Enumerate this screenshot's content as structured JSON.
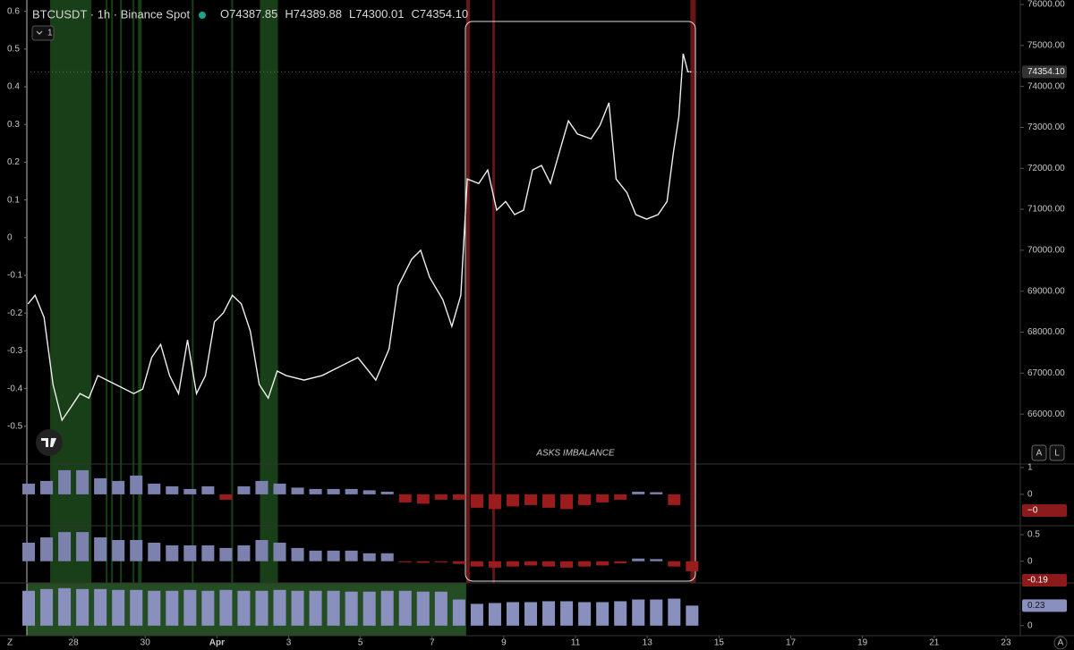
{
  "header": {
    "symbol": "BTCUSDT · 1h · Binance Spot",
    "ohlc": [
      {
        "label": "O",
        "value": 74387.85
      },
      {
        "label": "H",
        "value": 74389.88
      },
      {
        "label": "L",
        "value": 74300.01
      },
      {
        "label": "C",
        "value": 74354.1,
        "text": "74354.10"
      }
    ],
    "collapse": "1",
    "auto": "A",
    "log": "L",
    "corner_left": "Z",
    "corner_right": "A"
  },
  "chart_data": [
    {
      "type": "line",
      "annotation": "ASKS IMBALANCE",
      "xlim": [
        26.7,
        54.4
      ],
      "xticks": [
        {
          "value": 28,
          "label": "28"
        },
        {
          "value": 30,
          "label": "30"
        },
        {
          "value": 32,
          "label": "Apr"
        },
        {
          "value": 34,
          "label": "3"
        },
        {
          "value": 36,
          "label": "5"
        },
        {
          "value": 38,
          "label": "7"
        },
        {
          "value": 40,
          "label": "9"
        },
        {
          "value": 42,
          "label": "11"
        },
        {
          "value": 44,
          "label": "13"
        },
        {
          "value": 46,
          "label": "15"
        },
        {
          "value": 48,
          "label": "17"
        },
        {
          "value": 50,
          "label": "19"
        },
        {
          "value": 52,
          "label": "21"
        },
        {
          "value": 54,
          "label": "23"
        }
      ],
      "ylim": [
        -0.6,
        0.63
      ],
      "yticks": [
        0.6,
        0.5,
        0.4,
        0.3,
        0.2,
        0.1,
        0,
        -0.1,
        -0.2,
        -0.3,
        -0.4,
        -0.5
      ],
      "y2lim": [
        64780,
        76110
      ],
      "y2ticks": [
        {
          "value": 76000,
          "label": "76000.00"
        },
        {
          "value": 75000,
          "label": "75000.00"
        },
        {
          "value": 74000,
          "label": "74000.00"
        },
        {
          "value": 73000,
          "label": "73000.00"
        },
        {
          "value": 72000,
          "label": "72000.00"
        },
        {
          "value": 71000,
          "label": "71000.00"
        },
        {
          "value": 70000,
          "label": "70000.00"
        },
        {
          "value": 69000,
          "label": "69000.00"
        },
        {
          "value": 68000,
          "label": "68000.00"
        },
        {
          "value": 67000,
          "label": "67000.00"
        },
        {
          "value": 66000,
          "label": "66000.00"
        }
      ],
      "last_value": 74354.1,
      "last_value_label": "74354.10",
      "highlights": [
        {
          "start": 27.35,
          "end": 28.5,
          "color": "#1d4a1d"
        },
        {
          "start": 28.9,
          "end": 28.95,
          "color": "#1d4a1d"
        },
        {
          "start": 29.05,
          "end": 29.1,
          "color": "#1d4a1d"
        },
        {
          "start": 29.3,
          "end": 29.35,
          "color": "#1d4a1d"
        },
        {
          "start": 29.65,
          "end": 29.7,
          "color": "#1d4a1d"
        },
        {
          "start": 29.8,
          "end": 29.9,
          "color": "#1d4a1d"
        },
        {
          "start": 31.3,
          "end": 31.35,
          "color": "#1d4a1d"
        },
        {
          "start": 32.4,
          "end": 32.45,
          "color": "#1d4a1d"
        },
        {
          "start": 33.2,
          "end": 33.7,
          "color": "#1d4a1d"
        },
        {
          "start": 38.95,
          "end": 39.05,
          "color": "#7a1a1a"
        },
        {
          "start": 39.68,
          "end": 39.75,
          "color": "#7a1a1a"
        },
        {
          "start": 45.2,
          "end": 45.35,
          "color": "#7a1a1a"
        }
      ],
      "x": [
        26.73,
        26.93,
        27.18,
        27.43,
        27.68,
        27.93,
        28.18,
        28.43,
        28.68,
        28.93,
        29.18,
        29.43,
        29.68,
        29.93,
        30.18,
        30.43,
        30.68,
        30.93,
        31.18,
        31.43,
        31.68,
        31.93,
        32.18,
        32.43,
        32.68,
        32.93,
        33.18,
        33.43,
        33.68,
        33.93,
        34.43,
        34.93,
        35.43,
        35.93,
        36.43,
        36.8,
        37.05,
        37.43,
        37.68,
        37.93,
        38.3,
        38.55,
        38.8,
        38.98,
        39.3,
        39.55,
        39.8,
        40.05,
        40.3,
        40.55,
        40.8,
        41.05,
        41.3,
        41.55,
        41.8,
        42.05,
        42.43,
        42.68,
        42.93,
        43.13,
        43.43,
        43.68,
        43.98,
        44.3,
        44.55,
        44.73,
        44.88,
        45.0,
        45.13,
        45.23
      ],
      "series": [
        {
          "color": "#eeeeee",
          "axis": "y2",
          "values": [
            68690,
            68900,
            68360,
            66720,
            65850,
            66170,
            66500,
            66390,
            66940,
            66830,
            66720,
            66610,
            66500,
            66610,
            67380,
            67700,
            66940,
            66500,
            67810,
            66500,
            66940,
            68250,
            68470,
            68900,
            68690,
            68030,
            66720,
            66390,
            67050,
            66940,
            66830,
            66940,
            67160,
            67380,
            66830,
            67590,
            69120,
            69780,
            70000,
            69340,
            68790,
            68140,
            68900,
            71740,
            71630,
            71960,
            70980,
            71190,
            70870,
            70980,
            71960,
            72070,
            71630,
            72400,
            73160,
            72840,
            72720,
            73050,
            73600,
            71740,
            71410,
            70870,
            70760,
            70870,
            71190,
            72400,
            73270,
            74800,
            74360,
            74354.1
          ]
        }
      ]
    },
    {
      "type": "bar",
      "ylim": [
        -1.17,
        1.13
      ],
      "yticks": [
        1,
        0
      ],
      "color": "#7c82ad",
      "negative_color": "#9a1c1c",
      "last_value": -0.004,
      "last_value_label": "−0",
      "x": [
        26.75,
        27.25,
        27.75,
        28.25,
        28.75,
        29.25,
        29.75,
        30.25,
        30.75,
        31.25,
        31.75,
        32.25,
        32.75,
        33.25,
        33.75,
        34.25,
        34.75,
        35.25,
        35.75,
        36.25,
        36.75,
        37.25,
        37.75,
        38.25,
        38.75,
        39.25,
        39.75,
        40.25,
        40.75,
        41.25,
        41.75,
        42.25,
        42.75,
        43.25,
        43.75,
        44.25,
        44.75,
        45.25
      ],
      "values": [
        0.4,
        0.5,
        0.9,
        0.9,
        0.6,
        0.5,
        0.7,
        0.4,
        0.3,
        0.2,
        0.3,
        -0.2,
        0.3,
        0.5,
        0.4,
        0.25,
        0.2,
        0.2,
        0.2,
        0.15,
        0.1,
        -0.3,
        -0.35,
        -0.2,
        -0.2,
        -0.5,
        -0.55,
        -0.45,
        -0.4,
        -0.5,
        -0.55,
        -0.4,
        -0.3,
        -0.2,
        0.1,
        0.08,
        -0.4,
        -0.004
      ]
    },
    {
      "type": "bar",
      "ylim": [
        -0.41,
        0.67
      ],
      "yticks": [
        0.5,
        0
      ],
      "color": "#7c82ad",
      "negative_color": "#9a1c1c",
      "last_value": -0.19,
      "x": [
        26.75,
        27.25,
        27.75,
        28.25,
        28.75,
        29.25,
        29.75,
        30.25,
        30.75,
        31.25,
        31.75,
        32.25,
        32.75,
        33.25,
        33.75,
        34.25,
        34.75,
        35.25,
        35.75,
        36.25,
        36.75,
        37.25,
        37.75,
        38.25,
        38.75,
        39.25,
        39.75,
        40.25,
        40.75,
        41.25,
        41.75,
        42.25,
        42.75,
        43.25,
        43.75,
        44.25,
        44.75,
        45.25
      ],
      "values": [
        0.35,
        0.45,
        0.55,
        0.55,
        0.45,
        0.4,
        0.4,
        0.35,
        0.3,
        0.3,
        0.3,
        0.25,
        0.3,
        0.4,
        0.35,
        0.25,
        0.2,
        0.2,
        0.2,
        0.15,
        0.15,
        -0.02,
        -0.03,
        -0.02,
        -0.05,
        -0.1,
        -0.12,
        -0.1,
        -0.08,
        -0.1,
        -0.12,
        -0.1,
        -0.08,
        -0.04,
        0.05,
        0.04,
        -0.1,
        -0.19
      ]
    },
    {
      "type": "bar",
      "ylim": [
        -0.115,
        0.49
      ],
      "yticks": [
        0
      ],
      "color": "#8a90bd",
      "negative_color": "#9a1c1c",
      "last_value": 0.23,
      "highlights": [
        {
          "start": 26.7,
          "end": 38.95,
          "color": "#2a5a2a"
        }
      ],
      "x": [
        26.75,
        27.25,
        27.75,
        28.25,
        28.75,
        29.25,
        29.75,
        30.25,
        30.75,
        31.25,
        31.75,
        32.25,
        32.75,
        33.25,
        33.75,
        34.25,
        34.75,
        35.25,
        35.75,
        36.25,
        36.75,
        37.25,
        37.75,
        38.25,
        38.75,
        39.25,
        39.75,
        40.25,
        40.75,
        41.25,
        41.75,
        42.25,
        42.75,
        43.25,
        43.75,
        44.25,
        44.75,
        45.25
      ],
      "values": [
        0.4,
        0.42,
        0.43,
        0.42,
        0.42,
        0.41,
        0.41,
        0.4,
        0.4,
        0.41,
        0.4,
        0.41,
        0.4,
        0.4,
        0.41,
        0.4,
        0.4,
        0.4,
        0.39,
        0.39,
        0.4,
        0.4,
        0.39,
        0.39,
        0.3,
        0.25,
        0.26,
        0.27,
        0.27,
        0.28,
        0.28,
        0.27,
        0.27,
        0.28,
        0.3,
        0.3,
        0.31,
        0.23
      ]
    }
  ]
}
